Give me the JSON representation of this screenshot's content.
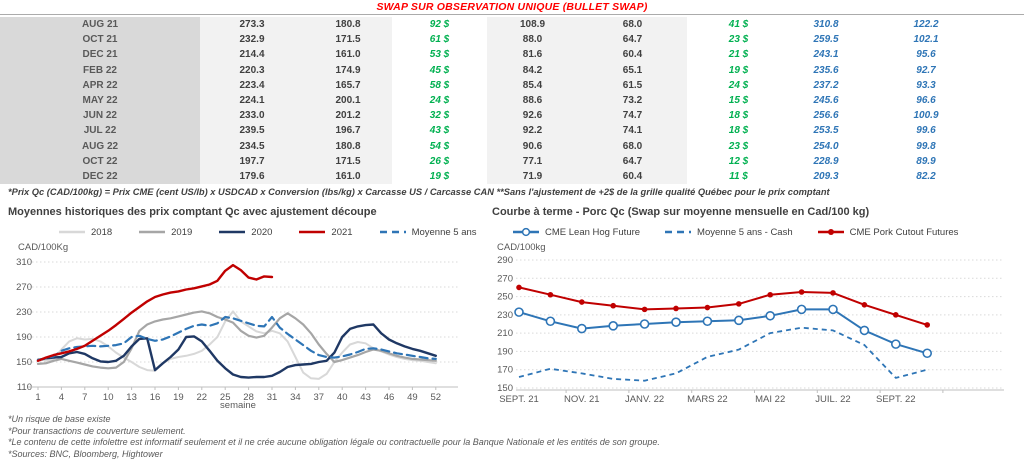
{
  "header": {
    "title": "SWAP SUR OBSERVATION UNIQUE (BULLET SWAP)"
  },
  "table": {
    "rows": [
      [
        "AUG 21",
        "273.3",
        "180.8",
        "92 $",
        "108.9",
        "68.0",
        "41 $",
        "310.8",
        "122.2"
      ],
      [
        "OCT 21",
        "232.9",
        "171.5",
        "61 $",
        "88.0",
        "64.7",
        "23 $",
        "259.5",
        "102.1"
      ],
      [
        "DEC 21",
        "214.4",
        "161.0",
        "53 $",
        "81.6",
        "60.4",
        "21 $",
        "243.1",
        "95.6"
      ],
      [
        "FEB 22",
        "220.3",
        "174.9",
        "45 $",
        "84.2",
        "65.1",
        "19 $",
        "235.6",
        "92.7"
      ],
      [
        "APR 22",
        "223.4",
        "165.7",
        "58 $",
        "85.4",
        "61.5",
        "24 $",
        "237.2",
        "93.3"
      ],
      [
        "MAY 22",
        "224.1",
        "200.1",
        "24 $",
        "88.6",
        "73.2",
        "15 $",
        "245.6",
        "96.6"
      ],
      [
        "JUN 22",
        "233.0",
        "201.2",
        "32 $",
        "92.6",
        "74.7",
        "18 $",
        "256.6",
        "100.9"
      ],
      [
        "JUL 22",
        "239.5",
        "196.7",
        "43 $",
        "92.2",
        "74.1",
        "18 $",
        "253.5",
        "99.6"
      ],
      [
        "AUG 22",
        "234.5",
        "180.8",
        "54 $",
        "90.6",
        "68.0",
        "23 $",
        "254.0",
        "99.8"
      ],
      [
        "OCT 22",
        "197.7",
        "171.5",
        "26 $",
        "77.1",
        "64.7",
        "12 $",
        "228.9",
        "89.9"
      ],
      [
        "DEC 22",
        "179.6",
        "161.0",
        "19 $",
        "71.9",
        "60.4",
        "11 $",
        "209.3",
        "82.2"
      ]
    ],
    "footnote": "*Prix Qc (CAD/100kg) = Prix CME (cent US/lb) x USDCAD x Conversion (lbs/kg) x Carcasse US / Carcasse CAN **Sans l'ajustement de +2$ de la grille qualité Québec pour le prix comptant"
  },
  "chart_data": [
    {
      "type": "line",
      "title": "Moyennes historiques des prix comptant Qc avec ajustement découpe",
      "ylabel": "CAD/100Kg",
      "xlabel": "semaine",
      "ylim": [
        110,
        310
      ],
      "yticks": [
        110,
        150,
        190,
        230,
        270,
        310
      ],
      "xticks": [
        1,
        4,
        7,
        10,
        13,
        16,
        19,
        22,
        25,
        28,
        31,
        34,
        37,
        40,
        43,
        46,
        49,
        52
      ],
      "x_weeks": {
        "from": 1,
        "to": 52
      },
      "grid": true,
      "legend_position": "top",
      "series": [
        {
          "name": "2018",
          "color": "#D8D8D8",
          "style": "solid",
          "values": [
            155,
            152,
            155,
            170,
            183,
            188,
            186,
            187,
            183,
            175,
            165,
            157,
            150,
            142,
            137,
            136,
            148,
            155,
            158,
            160,
            163,
            168,
            178,
            190,
            215,
            231,
            215,
            207,
            199,
            196,
            200,
            196,
            183,
            158,
            133,
            124,
            123,
            131,
            150,
            165,
            178,
            182,
            180,
            172,
            167,
            162,
            158,
            155,
            153,
            152,
            150,
            148
          ]
        },
        {
          "name": "2019",
          "color": "#A6A6A6",
          "style": "solid",
          "values": [
            147,
            148,
            152,
            155,
            152,
            149,
            146,
            143,
            141,
            140,
            141,
            150,
            172,
            200,
            210,
            215,
            218,
            220,
            223,
            226,
            229,
            231,
            228,
            222,
            218,
            213,
            200,
            192,
            189,
            192,
            205,
            220,
            228,
            220,
            210,
            196,
            178,
            163,
            150,
            153,
            157,
            161,
            166,
            170,
            168,
            164,
            160,
            157,
            155,
            154,
            153,
            152
          ]
        },
        {
          "name": "2020",
          "color": "#1F3864",
          "style": "solid",
          "values": [
            153,
            156,
            157,
            158,
            164,
            166,
            163,
            156,
            151,
            150,
            152,
            160,
            175,
            187,
            188,
            137,
            148,
            158,
            170,
            190,
            191,
            183,
            168,
            152,
            140,
            130,
            126,
            125,
            126,
            126,
            128,
            134,
            142,
            145,
            146,
            147,
            150,
            152,
            165,
            190,
            203,
            207,
            209,
            210,
            196,
            186,
            180,
            175,
            171,
            168,
            164,
            160
          ]
        },
        {
          "name": "Moyenne 5 ans",
          "color": "#2E75B6",
          "style": "dashed",
          "values": [
            153,
            156,
            159,
            168,
            172,
            174,
            175,
            176,
            175,
            176,
            177,
            180,
            190,
            192,
            187,
            184,
            186,
            191,
            197,
            203,
            208,
            210,
            208,
            212,
            222,
            220,
            216,
            212,
            208,
            207,
            222,
            205,
            195,
            186,
            177,
            168,
            161,
            158,
            157,
            159,
            162,
            166,
            171,
            172,
            170,
            167,
            164,
            162,
            160,
            158,
            156,
            155
          ]
        },
        {
          "name": "2021",
          "color": "#C00000",
          "style": "solid",
          "values": [
            152,
            157,
            161,
            164,
            167,
            171,
            176,
            184,
            192,
            200,
            209,
            219,
            229,
            238,
            247,
            254,
            258,
            261,
            263,
            266,
            268,
            271,
            274,
            280,
            296,
            305,
            297,
            285,
            282,
            287,
            286
          ]
        }
      ]
    },
    {
      "type": "line",
      "title": "Courbe à terme - Porc Qc (Swap sur moyenne mensuelle en Cad/100 kg)",
      "ylabel": "CAD/100kg",
      "ylim": [
        150,
        290
      ],
      "yticks": [
        150,
        170,
        190,
        210,
        230,
        250,
        270,
        290
      ],
      "categories": [
        "SEPT. 21",
        "OCT. 21",
        "NOV. 21",
        "DÉC. 21",
        "JANV. 22",
        "FÉVR. 22",
        "MARS 22",
        "AVR. 22",
        "MAI 22",
        "JUIN 22",
        "JUIL. 22",
        "AOÛT 22",
        "SEPT. 22",
        "OCT. 22"
      ],
      "xtick_labels": [
        "SEPT. 21",
        "NOV. 21",
        "JANV. 22",
        "MARS 22",
        "MAI 22",
        "JUIL. 22",
        "SEPT. 22"
      ],
      "grid": true,
      "legend_position": "top",
      "series": [
        {
          "name": "Moyenne 5 ans - Cash",
          "color": "#2E75B6",
          "style": "dashed",
          "marker": "none",
          "values": [
            162,
            171,
            166,
            160,
            158,
            166,
            184,
            192,
            210,
            216,
            213,
            197,
            161,
            170
          ]
        },
        {
          "name": "CME Lean Hog Future",
          "color": "#2E75B6",
          "style": "solid",
          "marker": "open-circle",
          "values": [
            233,
            223,
            215,
            218,
            220,
            222,
            223,
            224,
            229,
            236,
            236,
            213,
            198,
            188
          ]
        },
        {
          "name": "CME Pork Cutout Futures",
          "color": "#C00000",
          "style": "solid",
          "marker": "filled-circle",
          "values": [
            260,
            252,
            244,
            240,
            236,
            237,
            238,
            242,
            252,
            255,
            254,
            241,
            230,
            219
          ]
        }
      ],
      "legend_order": [
        "CME Lean Hog Future",
        "Moyenne 5 ans - Cash",
        "CME Pork Cutout Futures"
      ]
    }
  ],
  "footnotes": [
    "*Un risque de base existe",
    "*Pour transactions de couverture seulement.",
    "*Le contenu de cette infolettre est informatif seulement et il ne crée aucune obligation légale ou contractuelle pour la Banque Nationale et les entités de son groupe.",
    "*Sources: BNC, Bloomberg, Hightower"
  ],
  "colors": {
    "title_red": "#FF0000",
    "value_green": "#00B050",
    "value_blue": "#2E75B6",
    "grid_gray": "#D9D9D9"
  }
}
